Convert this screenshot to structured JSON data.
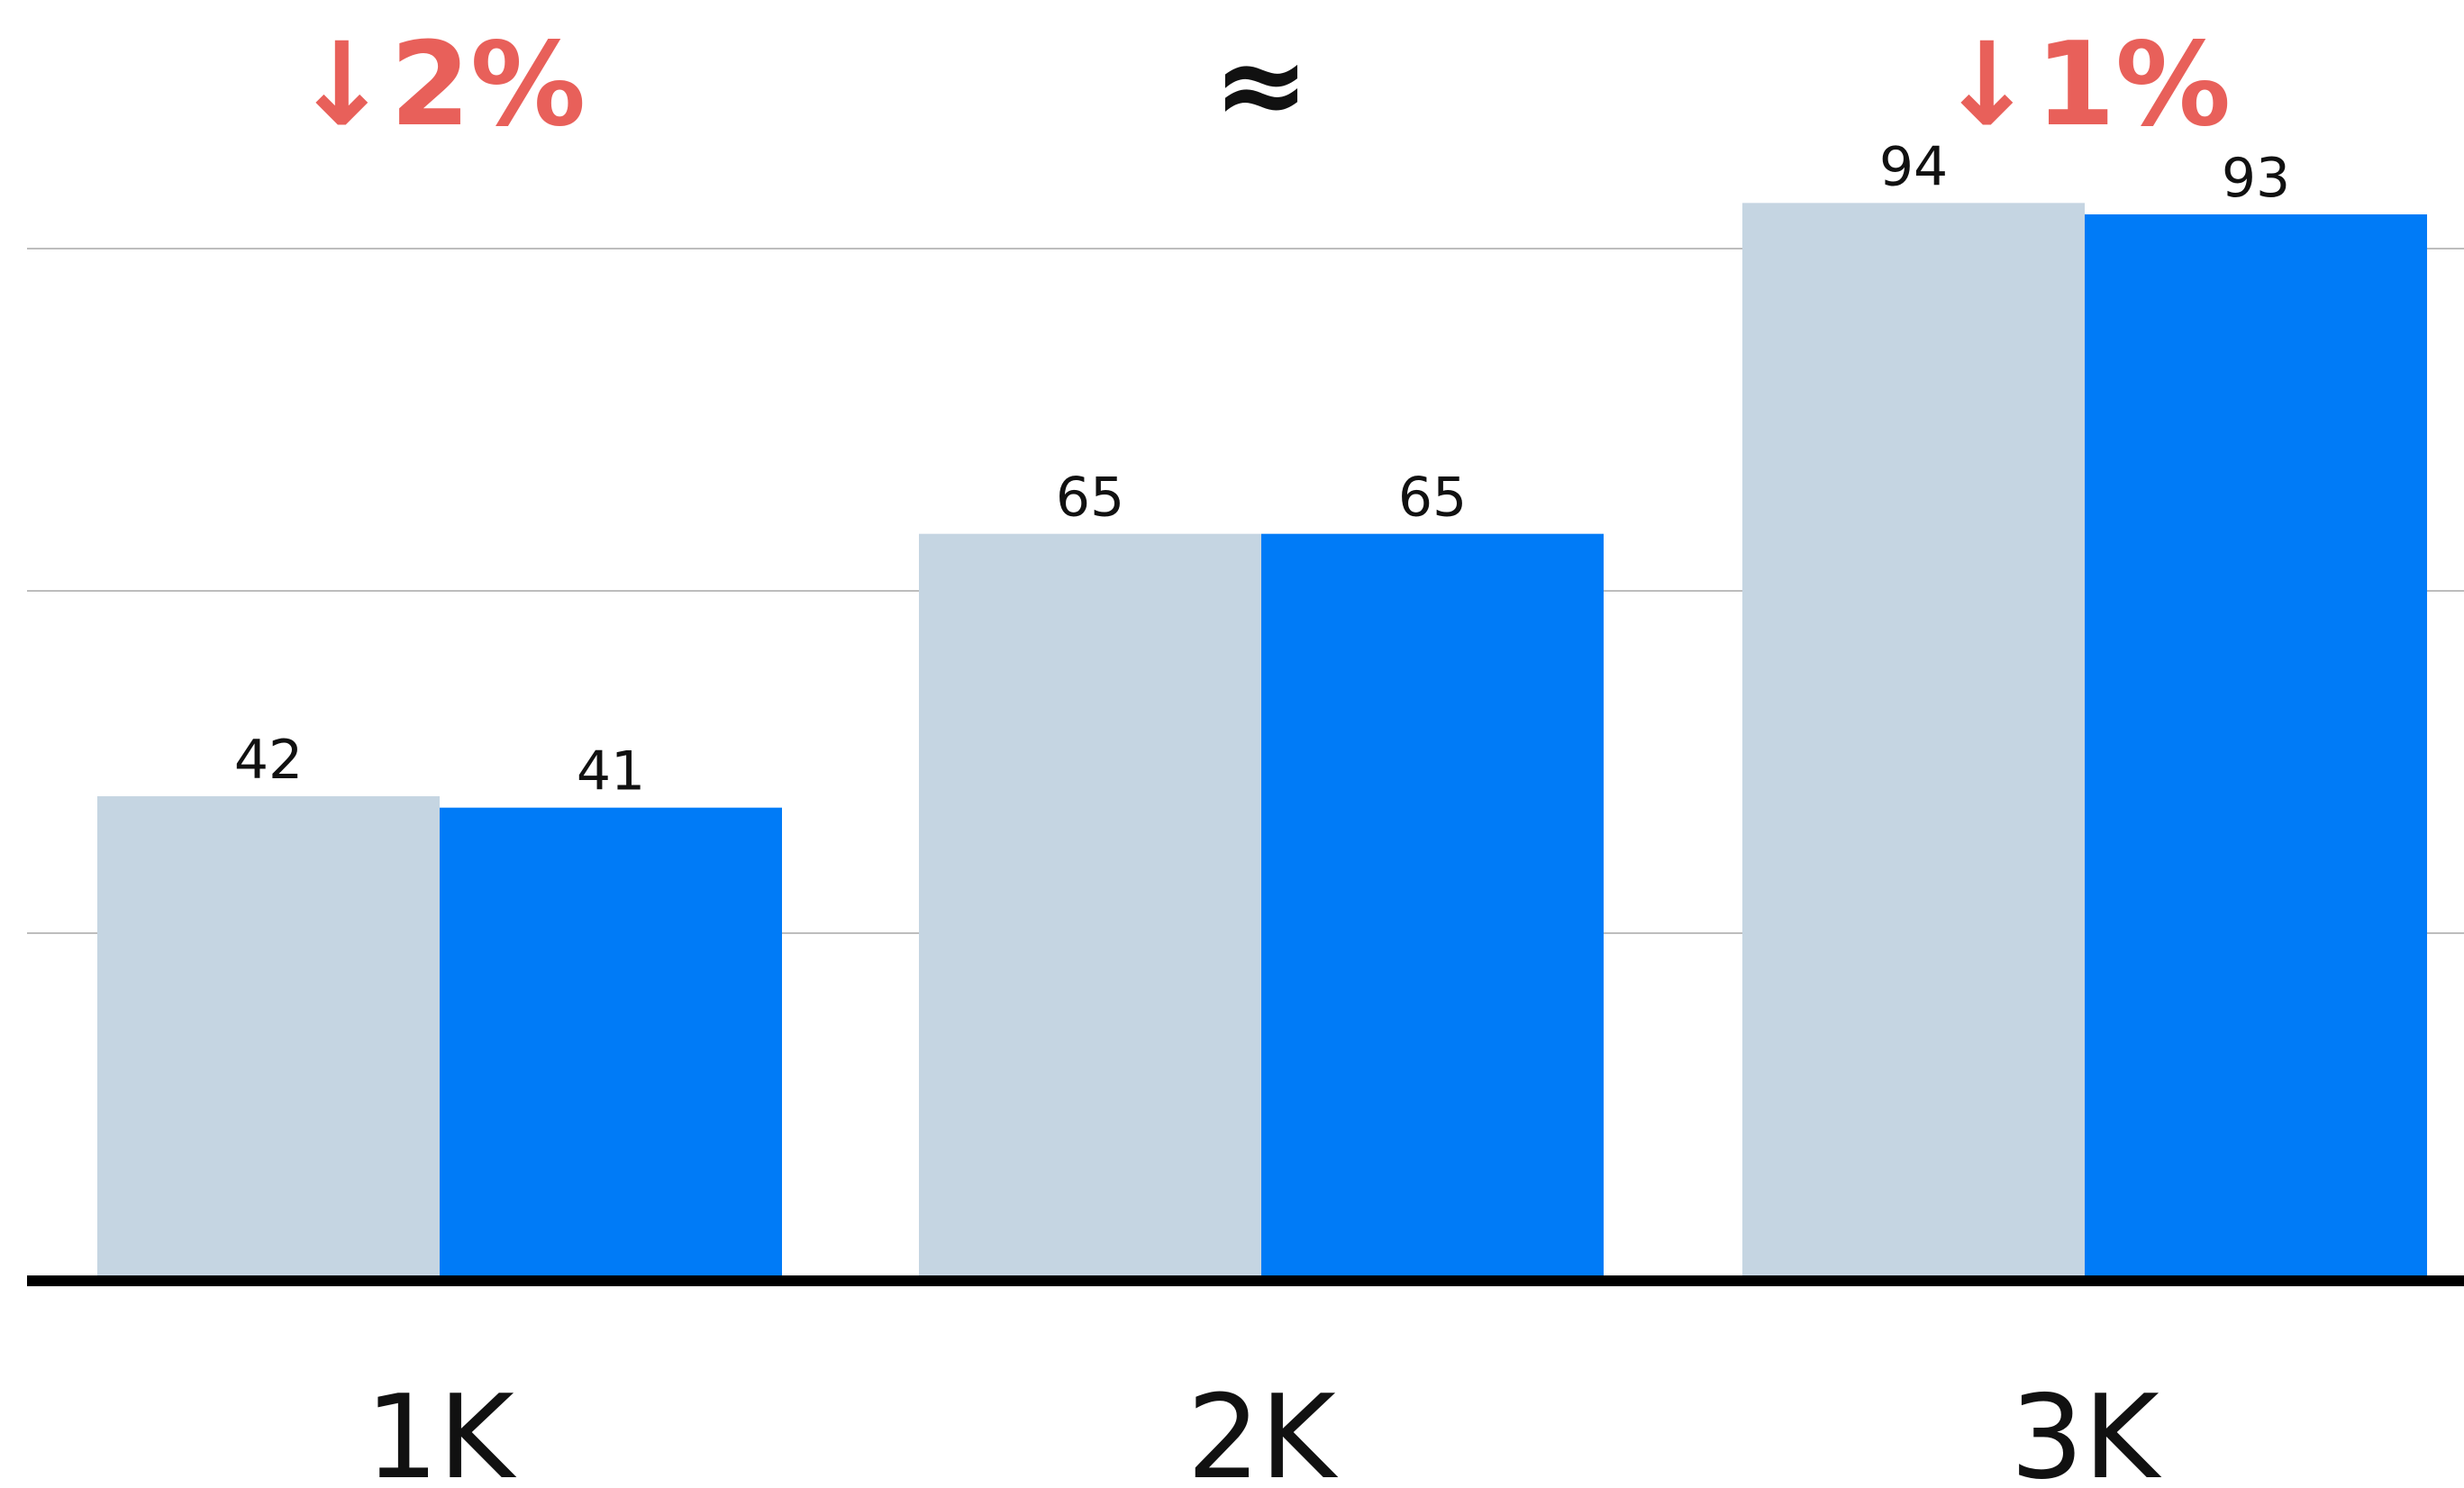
{
  "colors": {
    "baseline": "#c5d5e2",
    "new": "#007bf7",
    "down": "#e8605a",
    "neutral": "#111111",
    "grid": "#bdbdbd",
    "axis": "#000000"
  },
  "comparisons": [
    {
      "text": "↓2%",
      "color": "#e8605a"
    },
    {
      "text": "≈",
      "color": "#111111"
    },
    {
      "text": "↓1%",
      "color": "#e8605a"
    }
  ],
  "chart_data": {
    "type": "bar",
    "categories": [
      "1K",
      "2K",
      "3K"
    ],
    "series": [
      {
        "values": [
          42,
          65,
          94
        ],
        "color": "#c5d5e2"
      },
      {
        "values": [
          41,
          65,
          93
        ],
        "color": "#007bf7"
      }
    ],
    "data_labels": true,
    "grid": true,
    "legend": "none",
    "ylim": [
      0,
      107
    ],
    "gridlines": [
      30,
      60,
      90
    ]
  }
}
